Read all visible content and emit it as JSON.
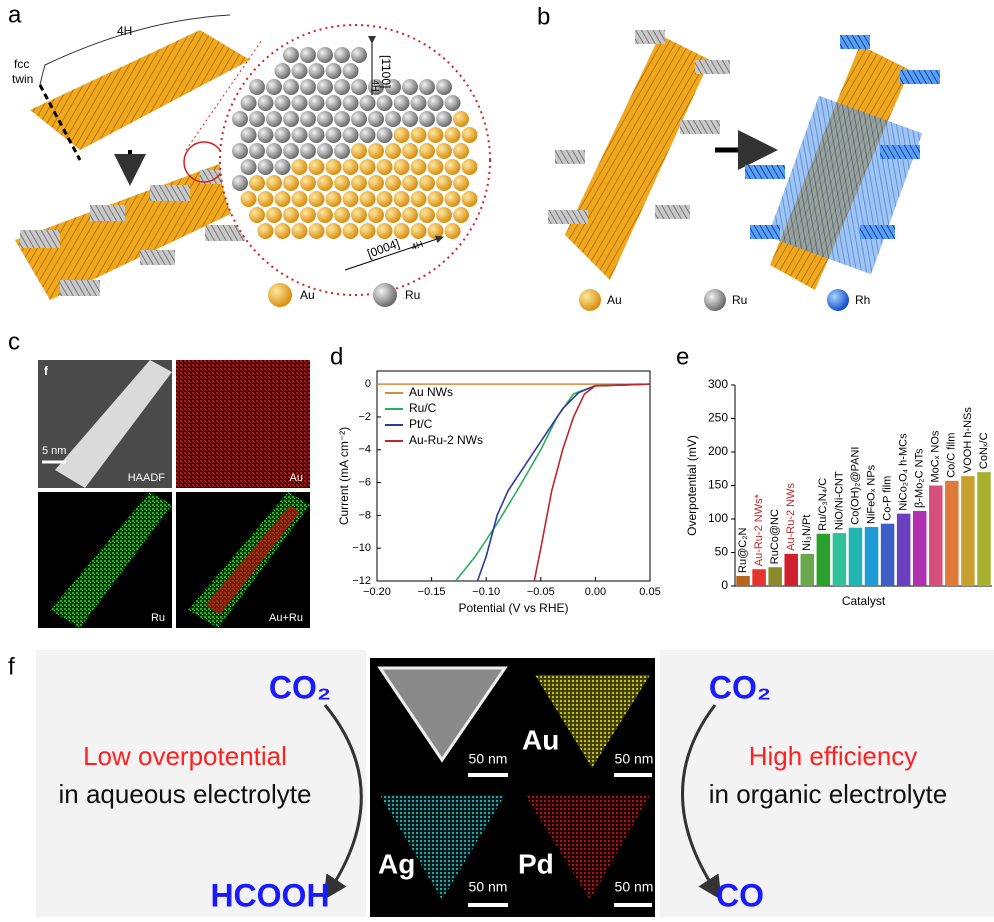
{
  "panel_a": {
    "label": "a",
    "fcc": "fcc",
    "twin": "twin",
    "phase": "4H",
    "dir1": "[1̄100]",
    "dir1_sub": "4H",
    "dir2": "[0004]",
    "dir2_sub": "4H",
    "legend": [
      "Au",
      "Ru"
    ]
  },
  "panel_b": {
    "label": "b",
    "legend": [
      "Au",
      "Ru",
      "Rh"
    ]
  },
  "panel_c": {
    "label": "c",
    "sub_label": "f",
    "scale": "5 nm",
    "maps": [
      "HAADF",
      "Au",
      "Ru",
      "Au+Ru"
    ]
  },
  "panel_f": {
    "label": "f",
    "left_top": "CO₂",
    "left_bottom": "HCOOH",
    "left_title": "Low overpotential",
    "left_text": "in aqueous electrolyte",
    "maps": [
      "Au",
      "Ag",
      "Pd"
    ],
    "scales": [
      "50 nm",
      "50 nm",
      "50 nm",
      "50 nm"
    ],
    "right_top": "CO₂",
    "right_bottom": "CO",
    "right_title": "High efficiency",
    "right_text": "in organic electrolyte"
  },
  "chart_data": [
    {
      "type": "line",
      "panel": "d",
      "xlabel": "Potential (V vs RHE)",
      "ylabel": "Current (mA cm⁻²)",
      "xlim": [
        -0.2,
        0.05
      ],
      "ylim": [
        -12,
        0.8
      ],
      "xticks": [
        {
          "value": -0.2,
          "label": "−0.20"
        },
        {
          "value": -0.15,
          "label": "−0.15"
        },
        {
          "value": -0.1,
          "label": "−0.10"
        },
        {
          "value": -0.05,
          "label": "−0.05"
        },
        {
          "value": 0,
          "label": "0.00"
        },
        {
          "value": 0.05,
          "label": "0.05"
        }
      ],
      "yticks": [
        0,
        {
          "value": -2,
          "label": "−2"
        },
        {
          "value": -4,
          "label": "−4"
        },
        {
          "value": -6,
          "label": "−6"
        },
        {
          "value": -8,
          "label": "−8"
        },
        {
          "value": -10,
          "label": "−10"
        },
        {
          "value": -12,
          "label": "−12"
        }
      ],
      "legend": "upper left",
      "series": [
        {
          "name": "Au NWs",
          "color": "#d98a3a",
          "x": [
            -0.2,
            0.05
          ],
          "values": [
            0,
            0
          ]
        },
        {
          "name": "Ru/C",
          "color": "#2bb05a",
          "x": [
            -0.128,
            -0.11,
            -0.09,
            -0.07,
            -0.05,
            -0.035,
            -0.02,
            0,
            0.05
          ],
          "values": [
            -12,
            -10.5,
            -8.5,
            -6.3,
            -4,
            -2,
            -0.6,
            -0.1,
            0
          ]
        },
        {
          "name": "Pt/C",
          "color": "#2e3a9a",
          "x": [
            -0.108,
            -0.1,
            -0.09,
            -0.08,
            -0.06,
            -0.045,
            -0.03,
            -0.015,
            0,
            0.05
          ],
          "values": [
            -12,
            -10.5,
            -8,
            -6.5,
            -4.5,
            -3,
            -1.5,
            -0.5,
            -0.1,
            0
          ]
        },
        {
          "name": "Au-Ru-2 NWs",
          "color": "#c0262d",
          "x": [
            -0.056,
            -0.05,
            -0.04,
            -0.03,
            -0.02,
            -0.01,
            0,
            0.05
          ],
          "values": [
            -12,
            -10,
            -6.5,
            -4,
            -2,
            -0.6,
            -0.1,
            0
          ]
        }
      ]
    },
    {
      "type": "bar",
      "panel": "e",
      "xlabel": "Catalyst",
      "ylabel": "Overpotential (mV)",
      "ylim": [
        0,
        300
      ],
      "yticks": [
        0,
        50,
        100,
        150,
        200,
        250,
        300
      ],
      "categories": [
        "Ru@C₂N",
        "Au-Ru-2 NWs*",
        "RuCo@NC",
        "Au-Ru-2 NWs",
        "Ni₃N/Pt",
        "Ru/C₃N₄/C",
        "NiO/Ni-CNT",
        "Co(OH)₂@PANI",
        "NiFeOₓ NPs",
        "Co-P film",
        "NiCo₂O₄ h-MCs",
        "β-Mo₂C NTs",
        "MoCₓ NOs",
        "Co/C film",
        "VOOH h-NSs",
        "CoNₓ/C"
      ],
      "label_colors": [
        "#000000",
        "#c0262d",
        "#000000",
        "#c0262d",
        "#000000",
        "#000000",
        "#000000",
        "#000000",
        "#000000",
        "#000000",
        "#000000",
        "#000000",
        "#000000",
        "#000000",
        "#000000",
        "#000000"
      ],
      "values": [
        15,
        25,
        28,
        48,
        48,
        78,
        79,
        87,
        88,
        93,
        108,
        112,
        150,
        157,
        164,
        170
      ],
      "colors": [
        "#b5651d",
        "#e3342f",
        "#8a8a2a",
        "#d02030",
        "#6aa84f",
        "#2ca02c",
        "#33c19a",
        "#22b3b3",
        "#1f9ad6",
        "#3f5fc8",
        "#6a3fc0",
        "#b030b0",
        "#d4507a",
        "#e07a3a",
        "#c8a030",
        "#a8b030"
      ]
    }
  ]
}
